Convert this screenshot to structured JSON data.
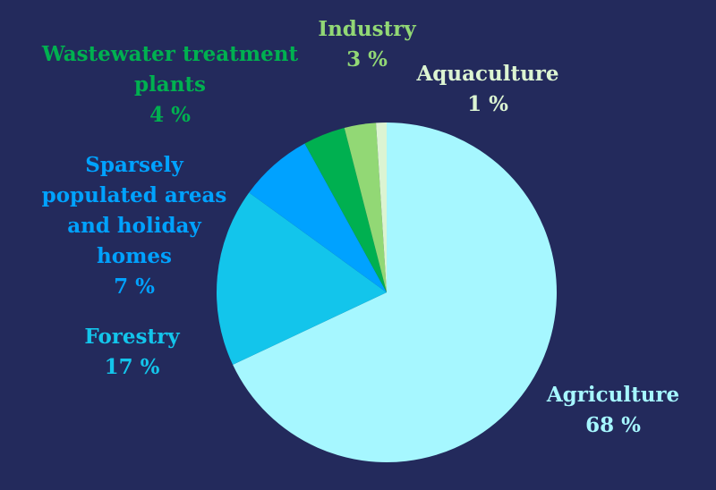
{
  "chart_data": {
    "type": "pie",
    "title": "",
    "start": "top",
    "direction": "clockwise",
    "slices": [
      {
        "label": "Agriculture",
        "value": 68,
        "value_label": "68 %",
        "color": "#a6f7ff"
      },
      {
        "label": "Forestry",
        "value": 17,
        "value_label": "17 %",
        "color": "#13c5eb"
      },
      {
        "label": "Sparsely populated areas and holiday homes",
        "value": 7,
        "value_label": "7 %",
        "color": "#00a2ff"
      },
      {
        "label": "Wastewater treatment plants",
        "value": 4,
        "value_label": "4 %",
        "color": "#00b050"
      },
      {
        "label": "Industry",
        "value": 3,
        "value_label": "3 %",
        "color": "#92d875"
      },
      {
        "label": "Aquaculture",
        "value": 1,
        "value_label": "1 %",
        "color": "#dcf4d2"
      }
    ]
  },
  "background": "#232a5c"
}
